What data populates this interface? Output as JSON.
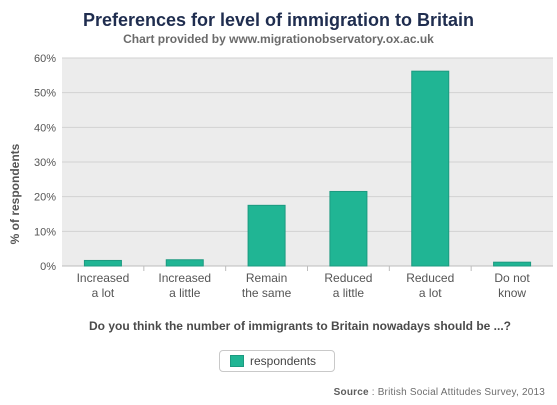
{
  "chart_data": {
    "type": "bar",
    "title": "Preferences for level of immigration to Britain",
    "subtitle": "Chart provided by www.migrationobservatory.ox.ac.uk",
    "ylabel": "% of respondents",
    "xlabel": "Do you think the number of immigrants to Britain nowadays should be ...?",
    "categories": [
      [
        "Increased",
        "a lot"
      ],
      [
        "Increased",
        "a little"
      ],
      [
        "Remain",
        "the same"
      ],
      [
        "Reduced",
        "a little"
      ],
      [
        "Reduced",
        "a lot"
      ],
      [
        "Do not",
        "know"
      ]
    ],
    "series": [
      {
        "name": "respondents",
        "values": [
          1.6,
          1.8,
          17.5,
          21.5,
          56.2,
          1.1
        ],
        "color": "#20b594",
        "edge_color": "#1c9a80"
      }
    ],
    "yticks": [
      "0%",
      "10%",
      "20%",
      "30%",
      "40%",
      "50%",
      "60%"
    ],
    "ylim": [
      0,
      60
    ],
    "grid": true,
    "legend_position": "bottom-center"
  },
  "legend": {
    "label": "respondents"
  },
  "source": {
    "label": "Source",
    "text": ": British Social Attitudes Survey, 2013"
  }
}
